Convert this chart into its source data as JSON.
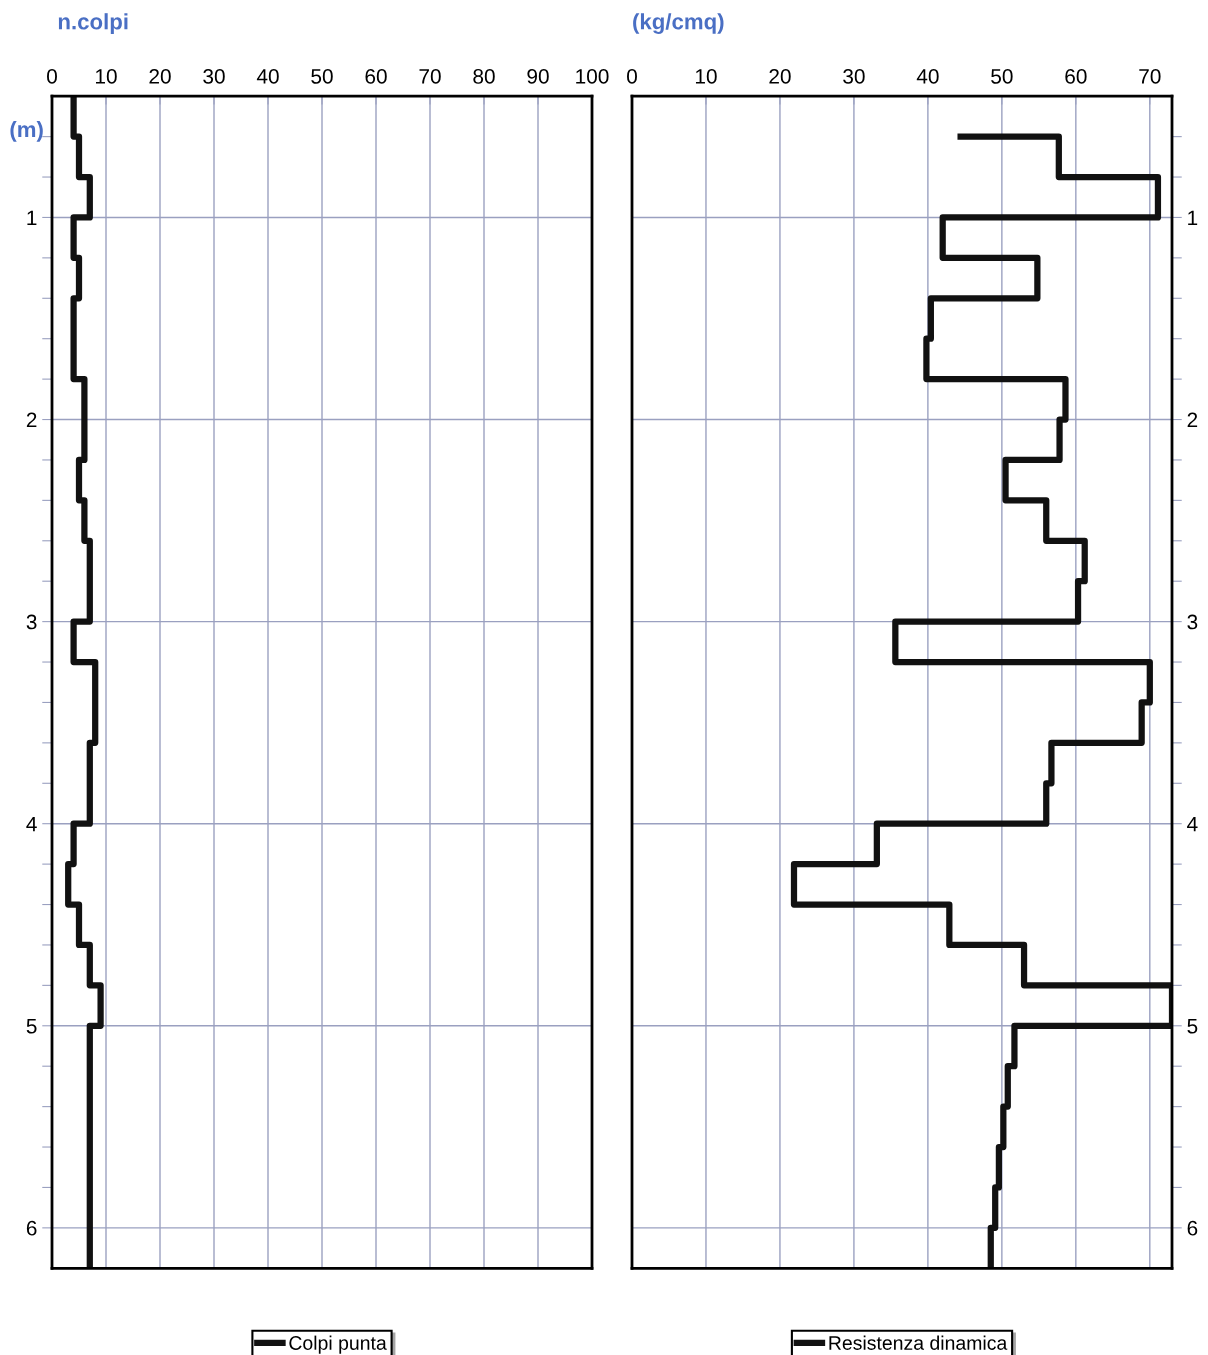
{
  "chart_data": [
    {
      "type": "step",
      "orientation": "horizontal",
      "xlabel": "n.colpi",
      "ylabel": "(m)",
      "legend": "bottom",
      "grid": true,
      "xlim": [
        0,
        100
      ],
      "xticks": [
        0,
        10,
        20,
        30,
        40,
        50,
        60,
        70,
        80,
        90,
        100
      ],
      "ylim": [
        6.2,
        0.4
      ],
      "yticks": [
        {
          "value": 0.6,
          "label": null
        },
        {
          "value": 0.8,
          "label": null
        },
        1,
        {
          "value": 1.2,
          "label": null
        },
        {
          "value": 1.4,
          "label": null
        },
        {
          "value": 1.6,
          "label": null
        },
        {
          "value": 1.8,
          "label": null
        },
        2,
        {
          "value": 2.2,
          "label": null
        },
        {
          "value": 2.4,
          "label": null
        },
        {
          "value": 2.6,
          "label": null
        },
        {
          "value": 2.8,
          "label": null
        },
        3,
        {
          "value": 3.2,
          "label": null
        },
        {
          "value": 3.4,
          "label": null
        },
        {
          "value": 3.6,
          "label": null
        },
        {
          "value": 3.8,
          "label": null
        },
        4,
        {
          "value": 4.2,
          "label": null
        },
        {
          "value": 4.4,
          "label": null
        },
        {
          "value": 4.6,
          "label": null
        },
        {
          "value": 4.8,
          "label": null
        },
        5,
        {
          "value": 5.2,
          "label": null
        },
        {
          "value": 5.4,
          "label": null
        },
        {
          "value": 5.6,
          "label": null
        },
        {
          "value": 5.8,
          "label": null
        },
        6
      ],
      "series": [
        {
          "name": "Colpi punta",
          "color": "#111111",
          "x": [
            0.4,
            0.6,
            0.8,
            1.0,
            1.2,
            1.4,
            1.8,
            2.2,
            2.4,
            2.6,
            3.0,
            3.2,
            3.6,
            4.0,
            4.2,
            4.4,
            4.6,
            4.8,
            5.0
          ],
          "values": [
            4,
            5,
            7,
            4,
            5,
            4,
            6,
            5,
            6,
            7,
            4,
            8,
            7,
            4,
            3,
            5,
            7,
            9,
            7
          ]
        }
      ]
    },
    {
      "type": "step",
      "orientation": "horizontal",
      "xlabel": "(kg/cmq)",
      "legend": "bottom",
      "grid": true,
      "xlim": [
        0,
        73
      ],
      "xticks": [
        0,
        10,
        20,
        30,
        40,
        50,
        60,
        70
      ],
      "ylim": [
        6.2,
        0.4
      ],
      "yticks": [
        {
          "value": 0.6,
          "label": null
        },
        {
          "value": 0.8,
          "label": null
        },
        1,
        {
          "value": 1.2,
          "label": null
        },
        {
          "value": 1.4,
          "label": null
        },
        {
          "value": 1.6,
          "label": null
        },
        {
          "value": 1.8,
          "label": null
        },
        2,
        {
          "value": 2.2,
          "label": null
        },
        {
          "value": 2.4,
          "label": null
        },
        {
          "value": 2.6,
          "label": null
        },
        {
          "value": 2.8,
          "label": null
        },
        3,
        {
          "value": 3.2,
          "label": null
        },
        {
          "value": 3.4,
          "label": null
        },
        {
          "value": 3.6,
          "label": null
        },
        {
          "value": 3.8,
          "label": null
        },
        4,
        {
          "value": 4.2,
          "label": null
        },
        {
          "value": 4.4,
          "label": null
        },
        {
          "value": 4.6,
          "label": null
        },
        {
          "value": 4.8,
          "label": null
        },
        5,
        {
          "value": 5.2,
          "label": null
        },
        {
          "value": 5.4,
          "label": null
        },
        {
          "value": 5.6,
          "label": null
        },
        {
          "value": 5.8,
          "label": null
        },
        6
      ],
      "series": [
        {
          "name": "Resistenza dinamica",
          "color": "#111111",
          "x": [
            0.6,
            0.6,
            0.8,
            1.0,
            1.2,
            1.4,
            1.6,
            1.8,
            2.0,
            2.2,
            2.4,
            2.6,
            2.8,
            3.0,
            3.2,
            3.4,
            3.6,
            3.8,
            4.0,
            4.2,
            4.4,
            4.6,
            4.8,
            5.0,
            5.2,
            5.4,
            5.6,
            5.8,
            6.0
          ],
          "values": [
            44,
            57.7,
            71.1,
            42.0,
            54.8,
            40.4,
            39.8,
            58.6,
            57.8,
            50.5,
            56.0,
            61.2,
            60.3,
            35.6,
            70.0,
            68.9,
            56.7,
            56.0,
            33.1,
            21.9,
            42.9,
            53.0,
            73,
            51.7,
            50.8,
            50.2,
            49.6,
            49.1,
            48.5
          ]
        }
      ]
    }
  ]
}
